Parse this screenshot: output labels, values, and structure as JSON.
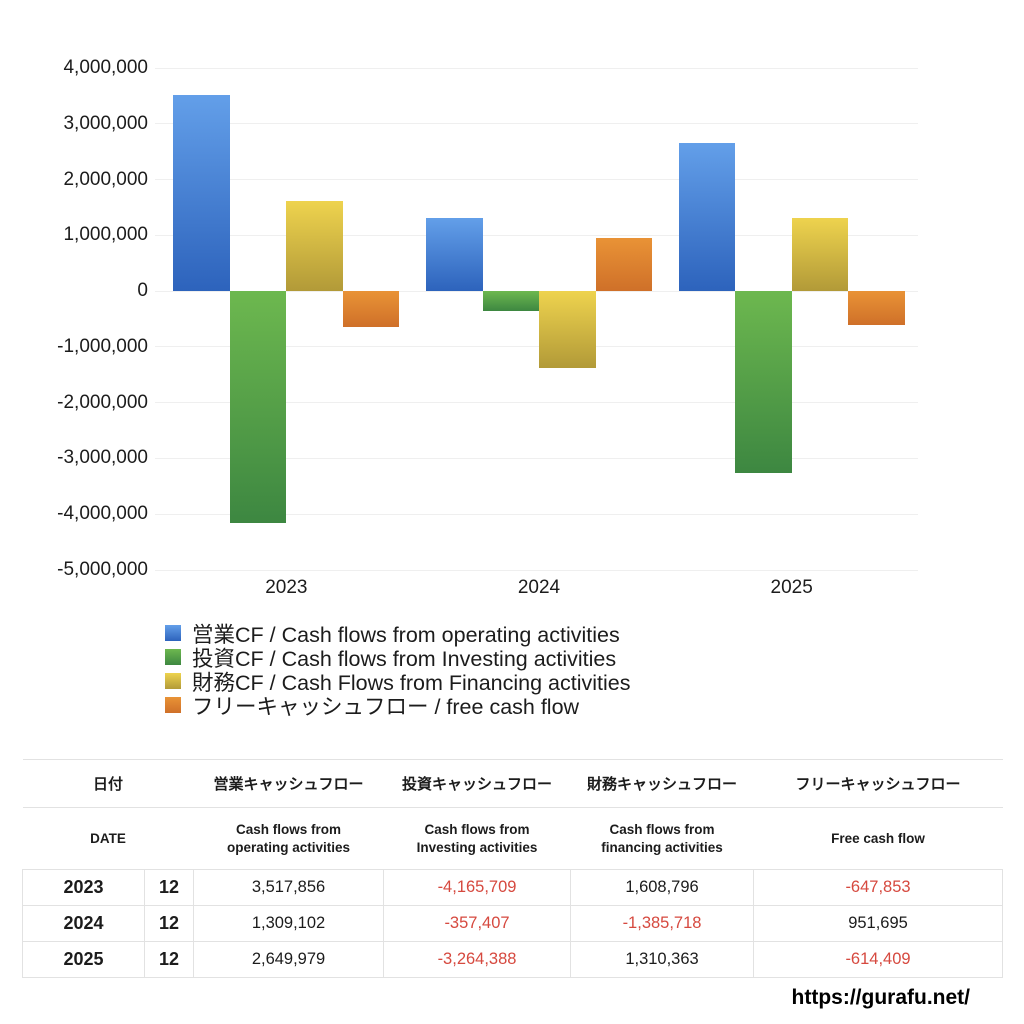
{
  "page": {
    "url_label": "https://gurafu.net/"
  },
  "chart_data": {
    "type": "bar",
    "title": "",
    "categories": [
      "2023",
      "2024",
      "2025"
    ],
    "series": [
      {
        "key": "operating",
        "legend": "営業CF / Cash flows from operating activities",
        "values": [
          3517856,
          1309102,
          2649979
        ],
        "color_top": "#639fe9",
        "color_bottom": "#2d63bc"
      },
      {
        "key": "investing",
        "legend": "投資CF / Cash flows from Investing activities",
        "values": [
          -4165709,
          -357407,
          -3264388
        ],
        "color_top": "#6db84f",
        "color_bottom": "#3d8741"
      },
      {
        "key": "financing",
        "legend": "財務CF / Cash Flows from Financing activities",
        "values": [
          1608796,
          -1385718,
          1310363
        ],
        "color_top": "#eed34e",
        "color_bottom": "#b29a38"
      },
      {
        "key": "free-cash-flow",
        "legend": "フリーキャッシュフロー / free cash flow",
        "values": [
          -647853,
          951695,
          -614409
        ],
        "color_top": "#e99336",
        "color_bottom": "#cf7029"
      }
    ],
    "xlabel": "",
    "ylabel": "",
    "ylim": [
      -5000000,
      4000000
    ],
    "grid": true,
    "legend_position": "bottom-left",
    "y_ticks": [
      {
        "value": 4000000,
        "label": "4,000,000"
      },
      {
        "value": 3000000,
        "label": "3,000,000"
      },
      {
        "value": 2000000,
        "label": "2,000,000"
      },
      {
        "value": 1000000,
        "label": "1,000,000"
      },
      {
        "value": 0,
        "label": "0"
      },
      {
        "value": -1000000,
        "label": "-1,000,000"
      },
      {
        "value": -2000000,
        "label": "-2,000,000"
      },
      {
        "value": -3000000,
        "label": "-3,000,000"
      },
      {
        "value": -4000000,
        "label": "-4,000,000"
      },
      {
        "value": -5000000,
        "label": "-5,000,000"
      }
    ]
  },
  "table": {
    "header_jp": [
      "日付",
      "営業キャッシュフロー",
      "投資キャッシュフロー",
      "財務キャッシュフロー",
      "フリーキャッシュフロー"
    ],
    "header_en": [
      "DATE",
      "Cash flows from\noperating activities",
      "Cash flows from\nInvesting activities",
      "Cash flows from\nfinancing activities",
      "Free cash flow"
    ],
    "rows": [
      {
        "year": "2023",
        "month": "12",
        "values": [
          "3,517,856",
          "-4,165,709",
          "1,608,796",
          "-647,853"
        ]
      },
      {
        "year": "2024",
        "month": "12",
        "values": [
          "1,309,102",
          "-357,407",
          "-1,385,718",
          "951,695"
        ]
      },
      {
        "year": "2025",
        "month": "12",
        "values": [
          "2,649,979",
          "-3,264,388",
          "1,310,363",
          "-614,409"
        ]
      }
    ]
  },
  "colors": {
    "negative_text": "#d6493f",
    "gridline": "#efefef",
    "table_border": "#e2e2e2"
  }
}
